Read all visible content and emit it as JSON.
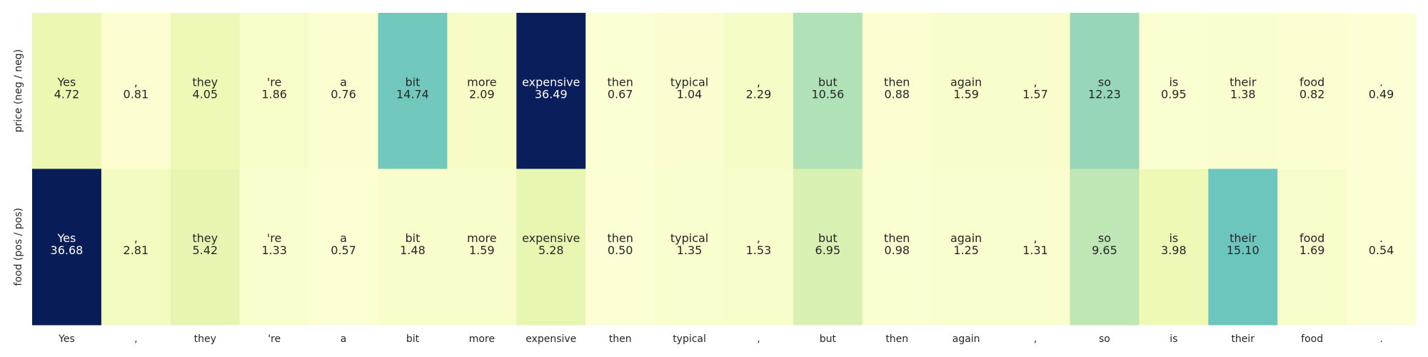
{
  "chart_data": {
    "type": "heatmap",
    "title": "",
    "xlabel": "",
    "ylabel": "",
    "colormap": "YlGnBu",
    "color_range": [
      0,
      36.68
    ],
    "grid": false,
    "colorbar": false,
    "x_tick_labels": [
      "Yes",
      ",",
      "they",
      "'re",
      "a",
      "bit",
      "more",
      "expensive",
      "then",
      "typical",
      ",",
      "but",
      "then",
      "again",
      ",",
      "so",
      "is",
      "their",
      "food",
      "."
    ],
    "rows": [
      {
        "label": "price (neg / neg)",
        "tokens": [
          "Yes",
          ",",
          "they",
          "'re",
          "a",
          "bit",
          "more",
          "expensive",
          "then",
          "typical",
          ",",
          "but",
          "then",
          "again",
          ",",
          "so",
          "is",
          "their",
          "food",
          "."
        ],
        "values": [
          4.72,
          0.81,
          4.05,
          1.86,
          0.76,
          14.74,
          2.09,
          36.49,
          0.67,
          1.04,
          2.29,
          10.56,
          0.88,
          1.59,
          1.57,
          12.23,
          0.95,
          1.38,
          0.82,
          0.49
        ],
        "value_labels": [
          "4.72",
          "0.81",
          "4.05",
          "1.86",
          "0.76",
          "14.74",
          "2.09",
          "36.49",
          "0.67",
          "1.04",
          "2.29",
          "10.56",
          "0.88",
          "1.59",
          "1.57",
          "12.23",
          "0.95",
          "1.38",
          "0.82",
          "0.49"
        ]
      },
      {
        "label": "food (pos / pos)",
        "tokens": [
          "Yes",
          ",",
          "they",
          "'re",
          "a",
          "bit",
          "more",
          "expensive",
          "then",
          "typical",
          ",",
          "but",
          "then",
          "again",
          ",",
          "so",
          "is",
          "their",
          "food",
          "."
        ],
        "values": [
          36.68,
          2.81,
          5.42,
          1.33,
          0.57,
          1.48,
          1.59,
          5.28,
          0.5,
          1.35,
          1.53,
          6.95,
          0.98,
          1.25,
          1.31,
          9.65,
          3.98,
          15.1,
          1.69,
          0.54
        ],
        "value_labels": [
          "36.68",
          "2.81",
          "5.42",
          "1.33",
          "0.57",
          "1.48",
          "1.59",
          "5.28",
          "0.50",
          "1.35",
          "1.53",
          "6.95",
          "0.98",
          "1.25",
          "1.31",
          "9.65",
          "3.98",
          "15.10",
          "1.69",
          "0.54"
        ]
      }
    ]
  }
}
